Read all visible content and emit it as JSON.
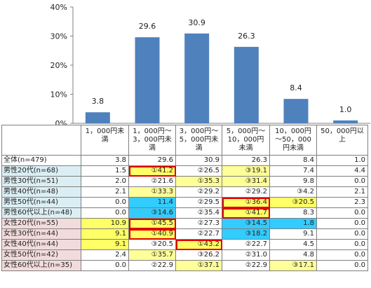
{
  "chart_data": {
    "type": "bar",
    "categories": [
      "1，000円未満",
      "1，000円～3，000円未満",
      "3，000円～5，000円未満",
      "5，000円～10，000円未満",
      "10，000円～50，000円未満",
      "50，000円以上"
    ],
    "values": [
      3.8,
      29.6,
      30.9,
      26.3,
      8.4,
      1.0
    ],
    "value_labels": [
      "3.8",
      "29.6",
      "30.9",
      "26.3",
      "8.4",
      "1.0"
    ],
    "ylim": [
      0,
      40
    ],
    "yticks": [
      "0%",
      "10%",
      "20%",
      "30%",
      "40%"
    ],
    "bar_color": "#4f81bd",
    "grid": false
  },
  "table": {
    "headers": [
      "1，000円未満",
      "1，000円～3，000円未満",
      "3，000円～5，000円未満",
      "5，000円～10，000円未満",
      "10，000円～50，000円未満",
      "50，000円以上"
    ],
    "rows": [
      {
        "label": "全体(n=479)",
        "group": "all",
        "cells": [
          "3.8",
          "29.6",
          "30.9",
          "26.3",
          "8.4",
          "1.0"
        ]
      },
      {
        "label": "男性20代(n=68)",
        "group": "m",
        "cells": [
          "1.5",
          "①41.2",
          "②26.5",
          "③19.1",
          "7.4",
          "4.4"
        ]
      },
      {
        "label": "男性30代(n=51)",
        "group": "m",
        "cells": [
          "2.0",
          "②21.6",
          "①35.3",
          "③31.4",
          "9.8",
          "0.0"
        ]
      },
      {
        "label": "男性40代(n=48)",
        "group": "m",
        "cells": [
          "2.1",
          "①33.3",
          "②29.2",
          "②29.2",
          "③4.2",
          "2.1"
        ]
      },
      {
        "label": "男性50代(n=44)",
        "group": "m",
        "cells": [
          "0.0",
          "11.4",
          "②29.5",
          "①36.4",
          "③20.5",
          "2.3"
        ]
      },
      {
        "label": "男性60代以上(n=48)",
        "group": "m",
        "cells": [
          "0.0",
          "③14.6",
          "②35.4",
          "①41.7",
          "8.3",
          "0.0"
        ]
      },
      {
        "label": "女性20代(n=55)",
        "group": "f",
        "cells": [
          "10.9",
          "①45.5",
          "②27.3",
          "③14.5",
          "1.8",
          "0.0"
        ]
      },
      {
        "label": "女性30代(n=44)",
        "group": "f",
        "cells": [
          "9.1",
          "①40.9",
          "②22.7",
          "③18.2",
          "9.1",
          "0.0"
        ]
      },
      {
        "label": "女性40代(n=44)",
        "group": "f",
        "cells": [
          "9.1",
          "③20.5",
          "①43.2",
          "②22.7",
          "4.5",
          "0.0"
        ]
      },
      {
        "label": "女性50代(n=42)",
        "group": "f",
        "cells": [
          "2.4",
          "①35.7",
          "③26.2",
          "②31.0",
          "4.8",
          "0.0"
        ]
      },
      {
        "label": "女性60代以上(n=35)",
        "group": "f",
        "cells": [
          "0.0",
          "②22.9",
          "①37.1",
          "②22.9",
          "③17.1",
          "0.0"
        ]
      }
    ],
    "highlight_colors": {
      "yellow": "#ffff66",
      "cyan": "#33ccff",
      "yellow_light": "#ffff99",
      "box": "#e00000"
    },
    "highlights": [
      [
        null,
        null,
        null,
        null,
        null,
        null
      ],
      [
        null,
        "yellow-box",
        null,
        "yellow-light",
        null,
        null
      ],
      [
        null,
        null,
        "yellow-light",
        "yellow-light",
        null,
        null
      ],
      [
        null,
        "yellow-light",
        null,
        null,
        null,
        null
      ],
      [
        null,
        "cyan",
        null,
        "yellow-box",
        "yellow",
        null
      ],
      [
        null,
        "cyan",
        null,
        "yellow-box",
        null,
        null
      ],
      [
        "yellow",
        "yellow-box",
        null,
        "cyan",
        "cyan",
        null
      ],
      [
        "yellow",
        "yellow-box",
        null,
        "cyan",
        null,
        null
      ],
      [
        "yellow",
        null,
        "yellow-box",
        null,
        null,
        null
      ],
      [
        null,
        "yellow-light",
        null,
        null,
        null,
        null
      ],
      [
        null,
        null,
        "yellow-light",
        null,
        "yellow-light",
        null
      ]
    ]
  }
}
